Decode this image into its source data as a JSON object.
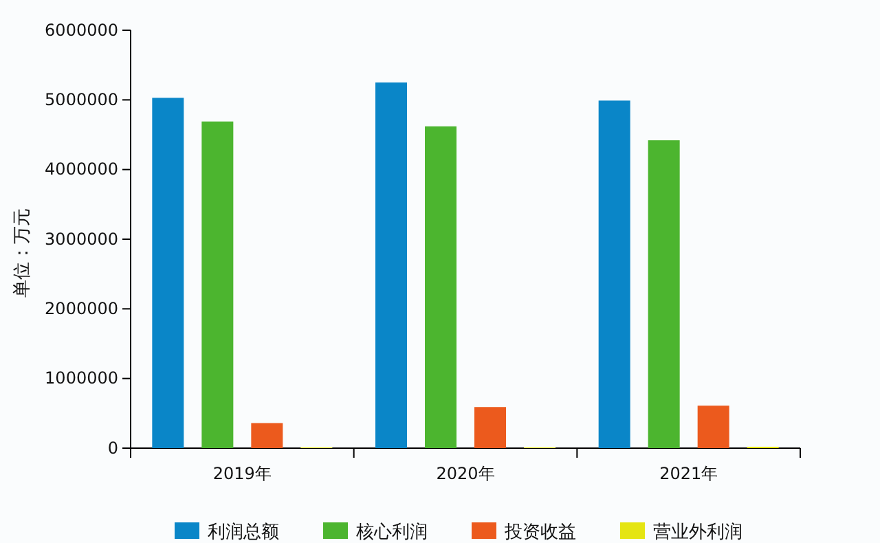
{
  "chart_data": {
    "type": "bar",
    "ylabel": "单位：万元",
    "categories": [
      "2019年",
      "2020年",
      "2021年"
    ],
    "series": [
      {
        "name": "利润总额",
        "color": "#0a86c8",
        "values": [
          5030000,
          5250000,
          4990000
        ]
      },
      {
        "name": "核心利润",
        "color": "#4cb52f",
        "values": [
          4690000,
          4620000,
          4420000
        ]
      },
      {
        "name": "投资收益",
        "color": "#ec5a1d",
        "values": [
          360000,
          590000,
          610000
        ]
      },
      {
        "name": "营业外利润",
        "color": "#e5e512",
        "values": [
          10000,
          10000,
          20000
        ]
      }
    ],
    "ylim": [
      0,
      6000000
    ],
    "yticks": [
      0,
      1000000,
      2000000,
      3000000,
      4000000,
      5000000,
      6000000
    ],
    "grid": false,
    "legend": "bottom"
  }
}
